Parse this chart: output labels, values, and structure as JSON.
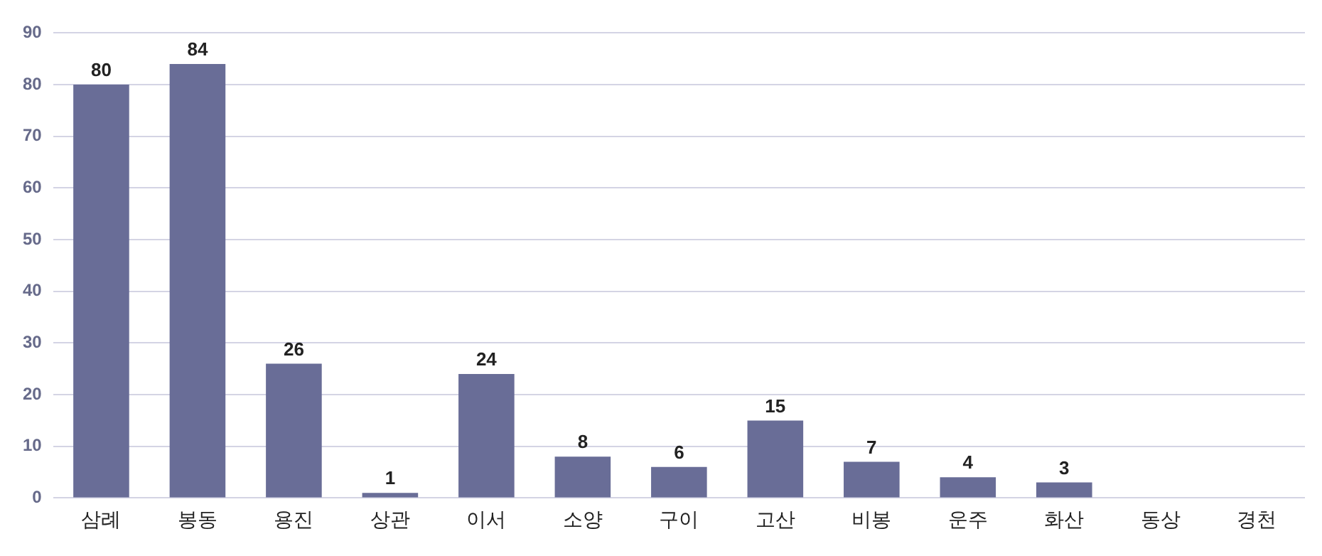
{
  "chart_data": {
    "type": "bar",
    "categories": [
      "삼례",
      "봉동",
      "용진",
      "상관",
      "이서",
      "소양",
      "구이",
      "고산",
      "비봉",
      "운주",
      "화산",
      "동상",
      "경천"
    ],
    "values": [
      80,
      84,
      26,
      1,
      24,
      8,
      6,
      15,
      7,
      4,
      3,
      null,
      null
    ],
    "color": "#696d97",
    "ylim": [
      0,
      90
    ],
    "yticks": [
      0,
      10,
      20,
      30,
      40,
      50,
      60,
      70,
      80,
      90
    ],
    "grid": "y",
    "data_labels": true
  }
}
